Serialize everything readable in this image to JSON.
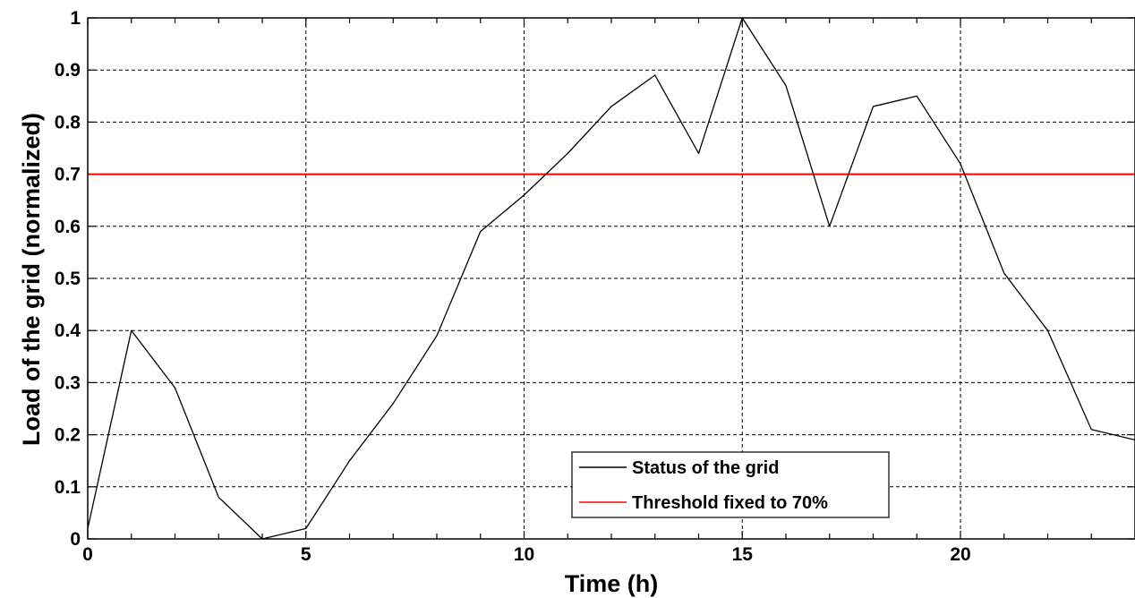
{
  "chart_data": {
    "type": "line",
    "title": "",
    "xlabel": "Time (h)",
    "ylabel": "Load of the grid (normalized)",
    "xlim": [
      0,
      24
    ],
    "ylim": [
      0,
      1
    ],
    "xticks": [
      0,
      5,
      10,
      15,
      20
    ],
    "xtick_labels": [
      "0",
      "5",
      "10",
      "15",
      "20"
    ],
    "yticks": [
      0,
      0.1,
      0.2,
      0.3,
      0.4,
      0.5,
      0.6,
      0.7,
      0.8,
      0.9,
      1
    ],
    "ytick_labels": [
      "0",
      "0.1",
      "0.2",
      "0.3",
      "0.4",
      "0.5",
      "0.6",
      "0.7",
      "0.8",
      "0.9",
      "1"
    ],
    "grid": true,
    "legend_position": "bottom-center-right",
    "series": [
      {
        "name": "Status of the grid",
        "color": "#000000",
        "x": [
          0,
          1,
          2,
          3,
          4,
          5,
          6,
          7,
          8,
          9,
          10,
          11,
          12,
          13,
          14,
          15,
          16,
          17,
          18,
          19,
          20,
          21,
          22,
          23,
          24
        ],
        "y": [
          0.02,
          0.4,
          0.29,
          0.08,
          0.0,
          0.02,
          0.15,
          0.26,
          0.39,
          0.59,
          0.66,
          0.74,
          0.83,
          0.89,
          0.74,
          1.0,
          0.87,
          0.6,
          0.83,
          0.85,
          0.72,
          0.51,
          0.4,
          0.21,
          0.19
        ]
      },
      {
        "name": "Threshold fixed to 70%",
        "color": "#ff0000",
        "x": [
          0,
          24
        ],
        "y": [
          0.7,
          0.7
        ]
      }
    ]
  }
}
